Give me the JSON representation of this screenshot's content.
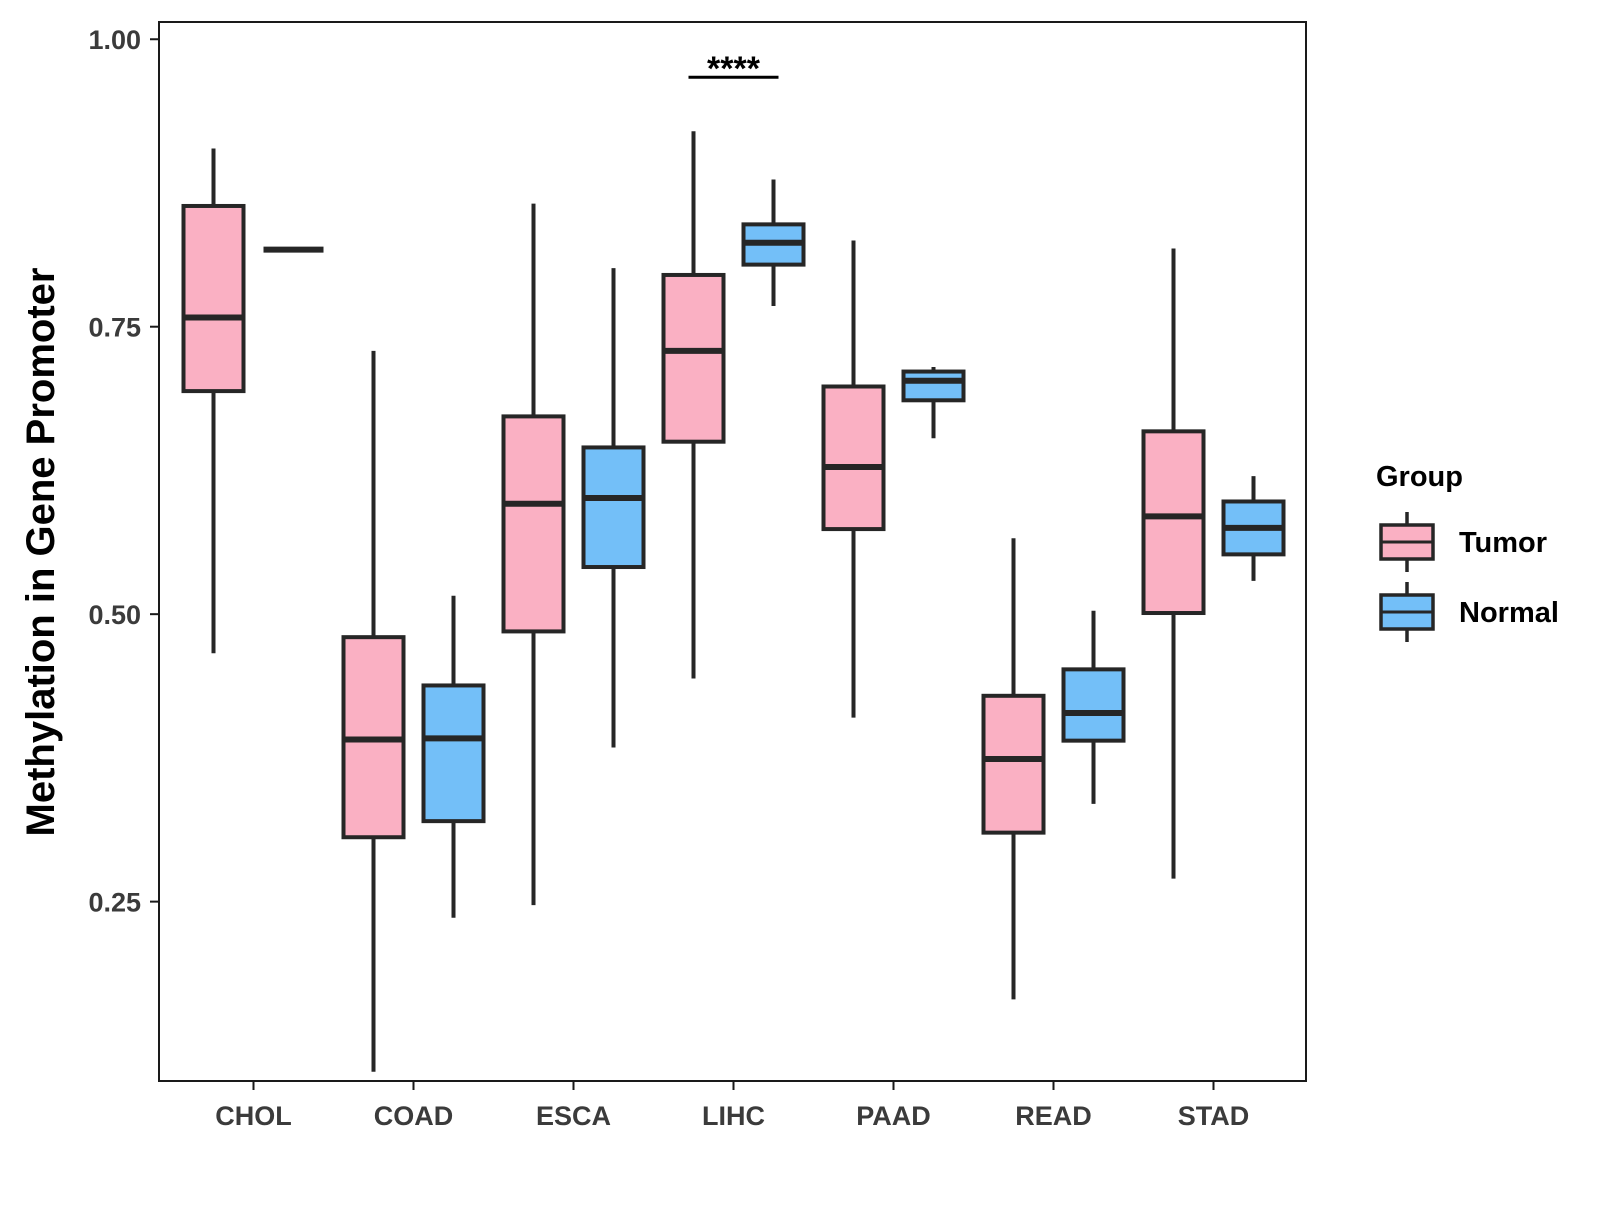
{
  "chart_data": {
    "type": "boxplot",
    "title": "",
    "xlabel": "",
    "ylabel": "Methylation in Gene Promoter",
    "ylim": [
      0.094,
      1.015
    ],
    "yticks": [
      0.25,
      0.5,
      0.75,
      1.0
    ],
    "ytick_labels": [
      "0.25",
      "0.50",
      "0.75",
      "1.00"
    ],
    "grid": false,
    "legend_position": "right",
    "legend": {
      "title": "Group",
      "entries": [
        {
          "name": "Tumor",
          "color": "#FAB0C3"
        },
        {
          "name": "Normal",
          "color": "#73BFF8"
        }
      ]
    },
    "categories": [
      "CHOL",
      "COAD",
      "ESCA",
      "LIHC",
      "PAAD",
      "READ",
      "STAD"
    ],
    "series": [
      {
        "name": "Tumor",
        "color": "#FAB0C3",
        "boxes": [
          {
            "min": 0.466,
            "q1": 0.694,
            "median": 0.758,
            "q3": 0.855,
            "max": 0.905
          },
          {
            "min": 0.102,
            "q1": 0.306,
            "median": 0.391,
            "q3": 0.48,
            "max": 0.729
          },
          {
            "min": 0.247,
            "q1": 0.485,
            "median": 0.596,
            "q3": 0.672,
            "max": 0.857
          },
          {
            "min": 0.444,
            "q1": 0.65,
            "median": 0.729,
            "q3": 0.795,
            "max": 0.92
          },
          {
            "min": 0.41,
            "q1": 0.574,
            "median": 0.628,
            "q3": 0.698,
            "max": 0.825
          },
          {
            "min": 0.165,
            "q1": 0.31,
            "median": 0.374,
            "q3": 0.429,
            "max": 0.566
          },
          {
            "min": 0.27,
            "q1": 0.501,
            "median": 0.585,
            "q3": 0.659,
            "max": 0.818
          }
        ]
      },
      {
        "name": "Normal",
        "color": "#73BFF8",
        "boxes": [
          {
            "min": 0.817,
            "q1": 0.817,
            "median": 0.817,
            "q3": 0.817,
            "max": 0.817
          },
          {
            "min": 0.236,
            "q1": 0.32,
            "median": 0.392,
            "q3": 0.438,
            "max": 0.516
          },
          {
            "min": 0.384,
            "q1": 0.541,
            "median": 0.601,
            "q3": 0.645,
            "max": 0.801
          },
          {
            "min": 0.768,
            "q1": 0.804,
            "median": 0.823,
            "q3": 0.839,
            "max": 0.878
          },
          {
            "min": 0.653,
            "q1": 0.686,
            "median": 0.703,
            "q3": 0.711,
            "max": 0.715
          },
          {
            "min": 0.335,
            "q1": 0.39,
            "median": 0.414,
            "q3": 0.452,
            "max": 0.503
          },
          {
            "min": 0.529,
            "q1": 0.552,
            "median": 0.575,
            "q3": 0.598,
            "max": 0.62
          }
        ]
      }
    ],
    "annotations": [
      {
        "category": "LIHC",
        "text": "****",
        "y": 0.967
      }
    ]
  },
  "colors": {
    "outline": "#262626",
    "frame": "#1a1a1a",
    "tick_text": "#3b3b3b"
  }
}
